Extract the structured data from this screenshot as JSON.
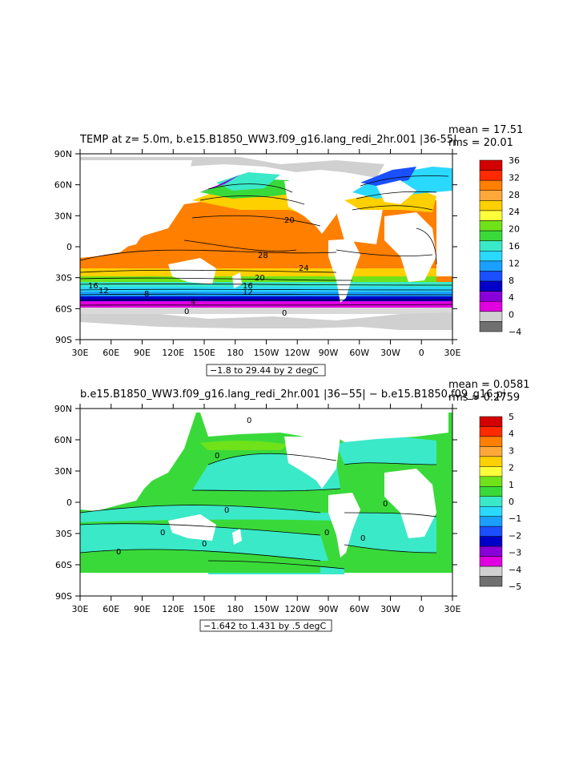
{
  "panels": [
    {
      "title": "TEMP at z=    5.0m, b.e15.B1850_WW3.f09_g16.lang_redi_2hr.001 |36-55|",
      "mean": "mean = 17.51",
      "rms": "rms = 20.01",
      "range_note": "−1.8 to 29.44 by 2 degC",
      "colorbar_labels": [
        "36",
        "32",
        "28",
        "24",
        "20",
        "16",
        "12",
        "8",
        "4",
        "0",
        "−4"
      ],
      "colorbar_colors": [
        "#d40000",
        "#ff2a00",
        "#ff7f00",
        "#ffa83a",
        "#ffd000",
        "#ffff3a",
        "#6fe21a",
        "#3ad93a",
        "#3ae9c8",
        "#2ad9ff",
        "#1a9fff",
        "#1a50ff",
        "#0000c8",
        "#8a00d9",
        "#e000e0",
        "#d0d0d0",
        "#707070"
      ],
      "contour_labels": [
        "20",
        "28",
        "24",
        "20",
        "16",
        "16",
        "12",
        "8",
        "12",
        "4",
        "0",
        "0"
      ]
    },
    {
      "title": "b.e15.B1850_WW3.f09_g16.lang_redi_2hr.001 |36−55| − b.e15.B1850.f09_g16.pi",
      "mean": "mean = 0.0581",
      "rms": "rms = 0.2759",
      "range_note": "−1.642 to 1.431 by .5 degC",
      "colorbar_labels": [
        "5",
        "4",
        "3",
        "2",
        "1",
        "0",
        "−1",
        "−2",
        "−3",
        "−4",
        "−5"
      ],
      "colorbar_colors": [
        "#d40000",
        "#ff2a00",
        "#ff7f00",
        "#ffa83a",
        "#ffd000",
        "#ffff3a",
        "#6fe21a",
        "#3ad93a",
        "#3ae9c8",
        "#2ad9ff",
        "#1a9fff",
        "#1a50ff",
        "#0000c8",
        "#8a00d9",
        "#e000e0",
        "#d0d0d0",
        "#707070"
      ],
      "contour_labels": [
        "0",
        "0",
        "0",
        "0",
        "0",
        "0",
        "0",
        "0",
        "0"
      ]
    }
  ],
  "lat_labels": [
    "90N",
    "60N",
    "30N",
    "0",
    "30S",
    "60S",
    "90S"
  ],
  "lon_labels": [
    "30E",
    "60E",
    "90E",
    "120E",
    "150E",
    "180",
    "150W",
    "120W",
    "90W",
    "60W",
    "30W",
    "0",
    "30E"
  ]
}
